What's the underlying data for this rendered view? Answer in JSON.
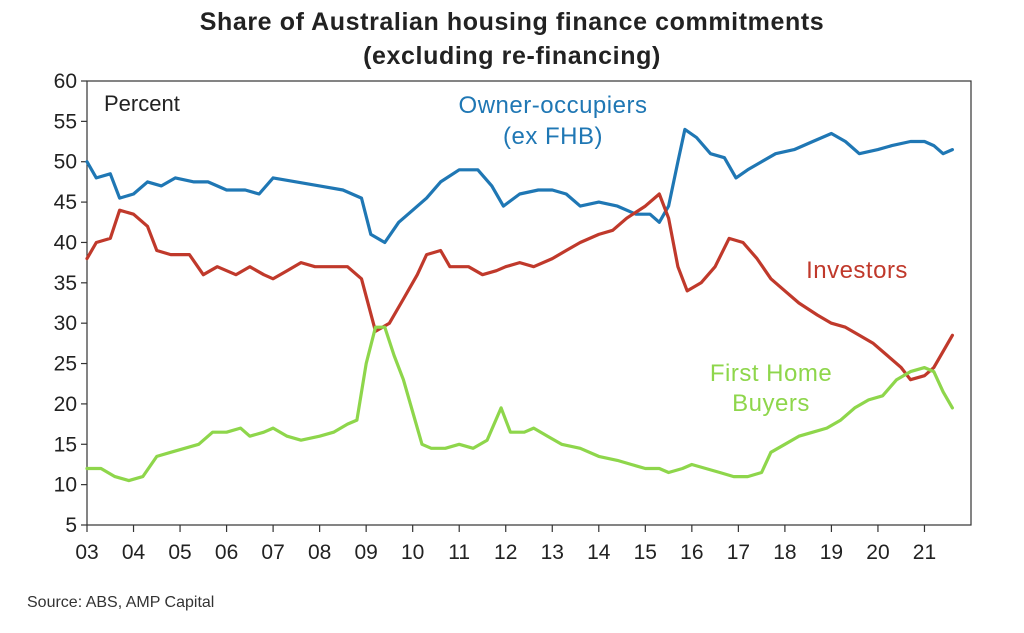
{
  "chart_data": {
    "type": "line",
    "title": "Share of Australian housing finance commitments",
    "subtitle": "(excluding re-financing)",
    "unit_label": "Percent",
    "source": "Source: ABS, AMP Capital",
    "xlim": [
      2003,
      2022
    ],
    "ylim": [
      5,
      60
    ],
    "x_tick_values": [
      2003,
      2004,
      2005,
      2006,
      2007,
      2008,
      2009,
      2010,
      2011,
      2012,
      2013,
      2014,
      2015,
      2016,
      2017,
      2018,
      2019,
      2020,
      2021
    ],
    "x_tick_labels": [
      "03",
      "04",
      "05",
      "06",
      "07",
      "08",
      "09",
      "10",
      "11",
      "12",
      "13",
      "14",
      "15",
      "16",
      "17",
      "18",
      "19",
      "20",
      "21"
    ],
    "y_ticks": [
      5,
      10,
      15,
      20,
      25,
      30,
      35,
      40,
      45,
      50,
      55,
      60
    ],
    "grid": false,
    "series": [
      {
        "name": "Owner-occupiers (ex FHB)",
        "label_lines": [
          "Owner-occupiers",
          "(ex FHB)"
        ],
        "color": "#1f77b4",
        "points": [
          [
            2003.0,
            50
          ],
          [
            2003.2,
            48
          ],
          [
            2003.5,
            48.5
          ],
          [
            2003.7,
            45.5
          ],
          [
            2004.0,
            46
          ],
          [
            2004.3,
            47.5
          ],
          [
            2004.6,
            47
          ],
          [
            2004.9,
            48
          ],
          [
            2005.3,
            47.5
          ],
          [
            2005.6,
            47.5
          ],
          [
            2006.0,
            46.5
          ],
          [
            2006.4,
            46.5
          ],
          [
            2006.7,
            46
          ],
          [
            2007.0,
            48
          ],
          [
            2007.5,
            47.5
          ],
          [
            2008.0,
            47
          ],
          [
            2008.5,
            46.5
          ],
          [
            2008.9,
            45.5
          ],
          [
            2009.1,
            41
          ],
          [
            2009.4,
            40
          ],
          [
            2009.7,
            42.5
          ],
          [
            2010.0,
            44
          ],
          [
            2010.3,
            45.5
          ],
          [
            2010.6,
            47.5
          ],
          [
            2011.0,
            49
          ],
          [
            2011.4,
            49
          ],
          [
            2011.7,
            47
          ],
          [
            2011.95,
            44.5
          ],
          [
            2012.3,
            46
          ],
          [
            2012.7,
            46.5
          ],
          [
            2013.0,
            46.5
          ],
          [
            2013.3,
            46
          ],
          [
            2013.6,
            44.5
          ],
          [
            2014.0,
            45
          ],
          [
            2014.4,
            44.5
          ],
          [
            2014.8,
            43.5
          ],
          [
            2015.1,
            43.5
          ],
          [
            2015.3,
            42.5
          ],
          [
            2015.5,
            44.5
          ],
          [
            2015.7,
            50
          ],
          [
            2015.85,
            54
          ],
          [
            2016.1,
            53
          ],
          [
            2016.4,
            51
          ],
          [
            2016.7,
            50.5
          ],
          [
            2016.95,
            48
          ],
          [
            2017.2,
            49
          ],
          [
            2017.5,
            50
          ],
          [
            2017.8,
            51
          ],
          [
            2018.2,
            51.5
          ],
          [
            2018.6,
            52.5
          ],
          [
            2019.0,
            53.5
          ],
          [
            2019.3,
            52.5
          ],
          [
            2019.6,
            51
          ],
          [
            2020.0,
            51.5
          ],
          [
            2020.3,
            52
          ],
          [
            2020.7,
            52.5
          ],
          [
            2021.0,
            52.5
          ],
          [
            2021.2,
            52
          ],
          [
            2021.4,
            51
          ],
          [
            2021.6,
            51.5
          ]
        ]
      },
      {
        "name": "Investors",
        "label_lines": [
          "Investors"
        ],
        "color": "#c0392b",
        "points": [
          [
            2003.0,
            38
          ],
          [
            2003.2,
            40
          ],
          [
            2003.5,
            40.5
          ],
          [
            2003.7,
            44
          ],
          [
            2004.0,
            43.5
          ],
          [
            2004.3,
            42
          ],
          [
            2004.5,
            39
          ],
          [
            2004.8,
            38.5
          ],
          [
            2005.2,
            38.5
          ],
          [
            2005.5,
            36
          ],
          [
            2005.8,
            37
          ],
          [
            2006.2,
            36
          ],
          [
            2006.5,
            37
          ],
          [
            2006.8,
            36
          ],
          [
            2007.0,
            35.5
          ],
          [
            2007.3,
            36.5
          ],
          [
            2007.6,
            37.5
          ],
          [
            2007.9,
            37
          ],
          [
            2008.3,
            37
          ],
          [
            2008.6,
            37
          ],
          [
            2008.9,
            35.5
          ],
          [
            2009.2,
            29
          ],
          [
            2009.5,
            30
          ],
          [
            2009.8,
            33
          ],
          [
            2010.1,
            36
          ],
          [
            2010.3,
            38.5
          ],
          [
            2010.6,
            39
          ],
          [
            2010.8,
            37
          ],
          [
            2011.2,
            37
          ],
          [
            2011.5,
            36
          ],
          [
            2011.8,
            36.5
          ],
          [
            2012.0,
            37
          ],
          [
            2012.3,
            37.5
          ],
          [
            2012.6,
            37
          ],
          [
            2013.0,
            38
          ],
          [
            2013.3,
            39
          ],
          [
            2013.6,
            40
          ],
          [
            2014.0,
            41
          ],
          [
            2014.3,
            41.5
          ],
          [
            2014.6,
            43
          ],
          [
            2015.0,
            44.5
          ],
          [
            2015.3,
            46
          ],
          [
            2015.5,
            43
          ],
          [
            2015.7,
            37
          ],
          [
            2015.9,
            34
          ],
          [
            2016.2,
            35
          ],
          [
            2016.5,
            37
          ],
          [
            2016.8,
            40.5
          ],
          [
            2017.1,
            40
          ],
          [
            2017.4,
            38
          ],
          [
            2017.7,
            35.5
          ],
          [
            2018.0,
            34
          ],
          [
            2018.3,
            32.5
          ],
          [
            2018.7,
            31
          ],
          [
            2019.0,
            30
          ],
          [
            2019.3,
            29.5
          ],
          [
            2019.6,
            28.5
          ],
          [
            2019.9,
            27.5
          ],
          [
            2020.2,
            26
          ],
          [
            2020.5,
            24.5
          ],
          [
            2020.7,
            23
          ],
          [
            2021.0,
            23.5
          ],
          [
            2021.2,
            24.5
          ],
          [
            2021.4,
            26.5
          ],
          [
            2021.6,
            28.5
          ]
        ]
      },
      {
        "name": "First Home Buyers",
        "label_lines": [
          "First Home",
          "Buyers"
        ],
        "color": "#8ed64b",
        "points": [
          [
            2003.0,
            12
          ],
          [
            2003.3,
            12
          ],
          [
            2003.6,
            11
          ],
          [
            2003.9,
            10.5
          ],
          [
            2004.2,
            11
          ],
          [
            2004.5,
            13.5
          ],
          [
            2004.8,
            14
          ],
          [
            2005.1,
            14.5
          ],
          [
            2005.4,
            15
          ],
          [
            2005.7,
            16.5
          ],
          [
            2006.0,
            16.5
          ],
          [
            2006.3,
            17
          ],
          [
            2006.5,
            16
          ],
          [
            2006.8,
            16.5
          ],
          [
            2007.0,
            17
          ],
          [
            2007.3,
            16
          ],
          [
            2007.6,
            15.5
          ],
          [
            2008.0,
            16
          ],
          [
            2008.3,
            16.5
          ],
          [
            2008.6,
            17.5
          ],
          [
            2008.8,
            18
          ],
          [
            2009.0,
            25
          ],
          [
            2009.2,
            29.5
          ],
          [
            2009.4,
            29.5
          ],
          [
            2009.6,
            26
          ],
          [
            2009.8,
            23
          ],
          [
            2010.0,
            19
          ],
          [
            2010.2,
            15
          ],
          [
            2010.4,
            14.5
          ],
          [
            2010.7,
            14.5
          ],
          [
            2011.0,
            15
          ],
          [
            2011.3,
            14.5
          ],
          [
            2011.6,
            15.5
          ],
          [
            2011.9,
            19.5
          ],
          [
            2012.1,
            16.5
          ],
          [
            2012.4,
            16.5
          ],
          [
            2012.6,
            17
          ],
          [
            2012.9,
            16
          ],
          [
            2013.2,
            15
          ],
          [
            2013.6,
            14.5
          ],
          [
            2014.0,
            13.5
          ],
          [
            2014.4,
            13
          ],
          [
            2014.7,
            12.5
          ],
          [
            2015.0,
            12
          ],
          [
            2015.3,
            12
          ],
          [
            2015.5,
            11.5
          ],
          [
            2015.8,
            12
          ],
          [
            2016.0,
            12.5
          ],
          [
            2016.3,
            12
          ],
          [
            2016.6,
            11.5
          ],
          [
            2016.9,
            11
          ],
          [
            2017.2,
            11
          ],
          [
            2017.5,
            11.5
          ],
          [
            2017.7,
            14
          ],
          [
            2018.0,
            15
          ],
          [
            2018.3,
            16
          ],
          [
            2018.6,
            16.5
          ],
          [
            2018.9,
            17
          ],
          [
            2019.2,
            18
          ],
          [
            2019.5,
            19.5
          ],
          [
            2019.8,
            20.5
          ],
          [
            2020.1,
            21
          ],
          [
            2020.4,
            23
          ],
          [
            2020.7,
            24
          ],
          [
            2021.0,
            24.5
          ],
          [
            2021.2,
            24
          ],
          [
            2021.4,
            21.5
          ],
          [
            2021.6,
            19.5
          ]
        ]
      }
    ]
  }
}
